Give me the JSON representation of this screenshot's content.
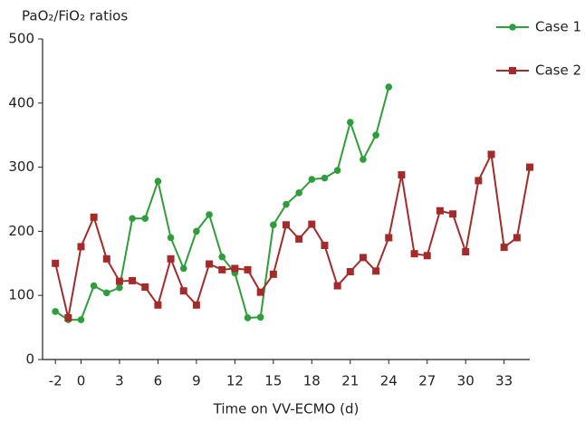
{
  "chart_data": {
    "type": "line",
    "title": "PaO₂/FiO₂ ratios",
    "x_label": "Time on VV-ECMO (d)",
    "xlim": [
      -3,
      35
    ],
    "xticks": [
      -2,
      0,
      3,
      6,
      9,
      12,
      15,
      18,
      21,
      24,
      27,
      30,
      33
    ],
    "ylim": [
      0,
      500
    ],
    "yticks": [
      0,
      100,
      200,
      300,
      400,
      500
    ],
    "grid": false,
    "legend": "top-right",
    "series": [
      {
        "name": "Case 1",
        "color": "#2e9e3a",
        "marker": "circle",
        "x": [
          -2,
          -1,
          0,
          1,
          2,
          3,
          4,
          5,
          6,
          7,
          8,
          9,
          10,
          11,
          12,
          13,
          14,
          15,
          16,
          17,
          18,
          19,
          20,
          21,
          22,
          23,
          24
        ],
        "values": [
          75,
          62,
          62,
          115,
          104,
          112,
          220,
          220,
          278,
          190,
          142,
          200,
          226,
          160,
          135,
          65,
          66,
          210,
          242,
          260,
          281,
          283,
          295,
          370,
          312,
          350,
          425
        ]
      },
      {
        "name": "Case 2",
        "color": "#a52a2a",
        "marker": "square",
        "x": [
          -2,
          -1,
          0,
          1,
          2,
          3,
          4,
          5,
          6,
          7,
          8,
          9,
          10,
          11,
          12,
          13,
          14,
          15,
          16,
          17,
          18,
          19,
          20,
          21,
          22,
          23,
          24,
          25,
          26,
          27,
          28,
          29,
          30,
          31,
          32,
          33,
          34,
          35
        ],
        "values": [
          150,
          65,
          176,
          222,
          157,
          122,
          123,
          113,
          85,
          157,
          107,
          85,
          149,
          140,
          142,
          140,
          105,
          133,
          210,
          188,
          211,
          178,
          115,
          137,
          159,
          138,
          190,
          288,
          165,
          162,
          232,
          227,
          168,
          279,
          320,
          175,
          190,
          300
        ]
      }
    ]
  }
}
